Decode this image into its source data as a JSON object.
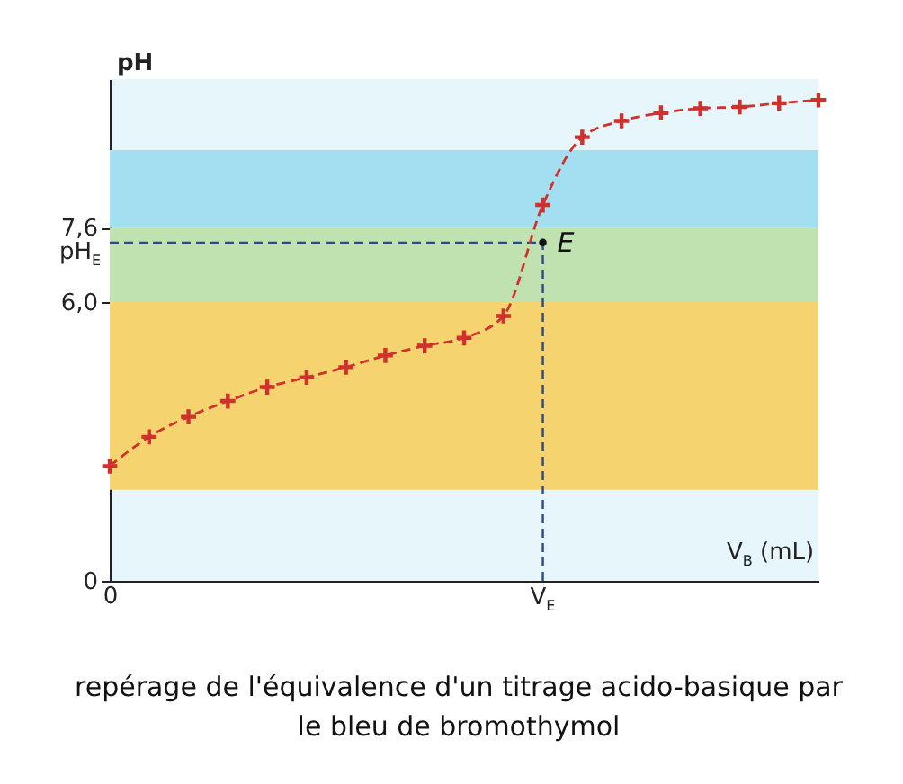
{
  "chart_data": {
    "type": "line",
    "ylabel": "pH",
    "xlabel": "V$_{B}$ (mL)",
    "categories": [
      "0",
      null,
      null,
      null,
      null,
      null,
      null,
      null,
      null,
      null,
      null,
      "V$_{E}$",
      null,
      null,
      null,
      null,
      null,
      null,
      null
    ],
    "series": [
      {
        "color": "#d0312d",
        "values": [
          2.47,
          3.1,
          3.53,
          3.87,
          4.17,
          4.38,
          4.6,
          4.85,
          5.06,
          5.23,
          5.7,
          8.09,
          9.55,
          9.9,
          10.07,
          10.17,
          10.2,
          10.28,
          10.35
        ]
      }
    ],
    "marker": "cross",
    "line_style": "dashed",
    "ylim": [
      0,
      10.8
    ],
    "yticks": [
      0,
      {
        "value": 6,
        "label": "6,0"
      },
      {
        "value": 7.6,
        "label": "7,6"
      }
    ],
    "ref_lines": [
      {
        "axis": "y",
        "value": 7.28,
        "label": "pH$_{E}$",
        "color": "#2b4a8a",
        "line_style": "dashed"
      },
      {
        "axis": "x",
        "value": "V$_{E}$",
        "color": "#2b4a8a",
        "line_style": "dashed"
      }
    ],
    "bands": [
      {
        "axis": "y",
        "from": 1.96,
        "to": 6.0,
        "color": "#f5d36e"
      },
      {
        "axis": "y",
        "from": 6.0,
        "to": 7.6,
        "color": "#bfe2b0"
      },
      {
        "axis": "y",
        "from": 7.6,
        "to": 9.27,
        "color": "#a3dff0"
      }
    ],
    "annotations": [
      {
        "text": "E",
        "x": "V$_{E}$",
        "y": 7.28
      },
      "repérage de l'équivalence d'un titrage acido-basique par le bleu de bromothymol"
    ]
  }
}
